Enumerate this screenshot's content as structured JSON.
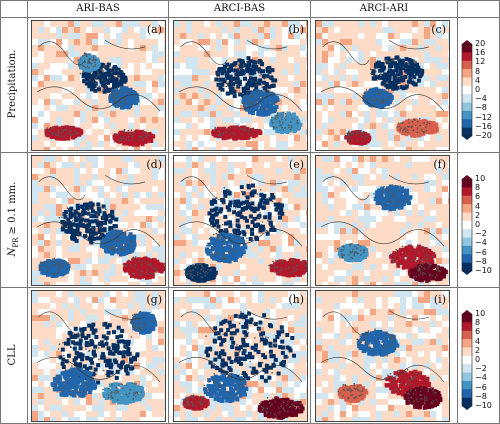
{
  "columns": [
    "ARI-BAS",
    "ARCI-BAS",
    "ARCI-ARI"
  ],
  "rows": [
    {
      "label": "Precipitation.",
      "panels": [
        "(a)",
        "(b)",
        "(c)"
      ],
      "colorbar": {
        "ticks": [
          "20",
          "16",
          "12",
          "8",
          "4",
          "0",
          "−4",
          "−8",
          "−12",
          "−16",
          "−20"
        ]
      }
    },
    {
      "label": "N_PR ≥ 0.1 mm.",
      "label_main": "N",
      "label_sub": "PR",
      "label_rest": " ≥ 0.1 mm.",
      "panels": [
        "(d)",
        "(e)",
        "(f)"
      ],
      "colorbar": {
        "ticks": [
          "10",
          "8",
          "6",
          "4",
          "2",
          "0",
          "−2",
          "−4",
          "−6",
          "−8",
          "−10"
        ]
      }
    },
    {
      "label": "CLL",
      "panels": [
        "(g)",
        "(h)",
        "(i)"
      ],
      "colorbar": {
        "ticks": [
          "10",
          "8",
          "6",
          "4",
          "2",
          "0",
          "−2",
          "−4",
          "−6",
          "−8",
          "−10"
        ]
      }
    }
  ],
  "colors": {
    "cmap": [
      "#053061",
      "#2166ac",
      "#4393c3",
      "#92c5de",
      "#d1e5f0",
      "#ffffff",
      "#fddbc7",
      "#f4a582",
      "#d6604d",
      "#b2182b",
      "#67001f"
    ],
    "stipple": "#555555"
  }
}
